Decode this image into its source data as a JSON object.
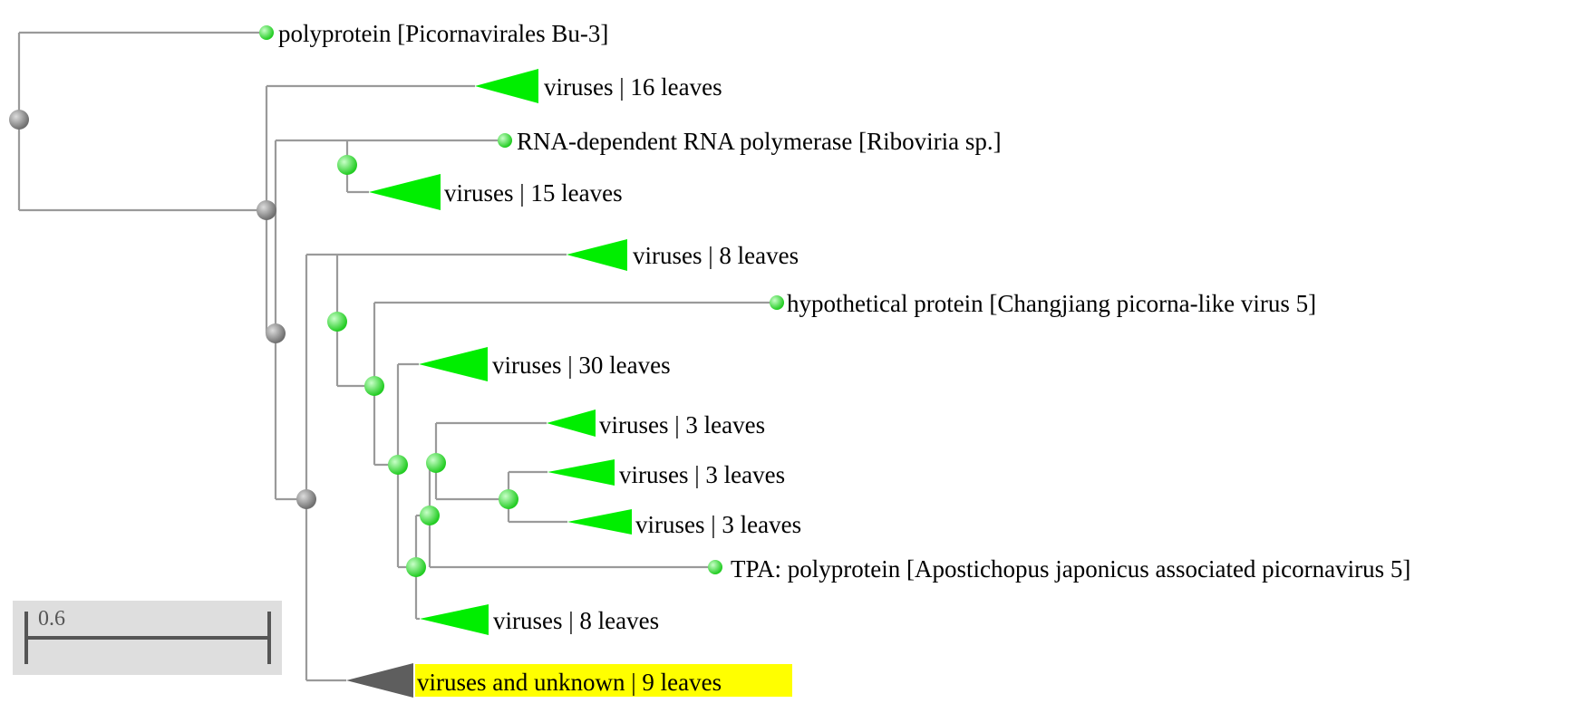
{
  "colors": {
    "branch": "#9a9a9a",
    "internal_node_gray": "#8c8c8c",
    "internal_node_green": "#55ee55",
    "leaf_node": "#44dd44",
    "collapsed_clade_green": "#00ee00",
    "collapsed_clade_gray": "#5e5e5e",
    "highlight": "#ffff00",
    "scale_bg": "#dedede",
    "scale_bar": "#555555"
  },
  "tree": {
    "leaves": [
      {
        "label": "polyprotein [Picornavirales Bu-3]",
        "kind": "leaf"
      },
      {
        "label": "viruses | 16 leaves",
        "kind": "clade"
      },
      {
        "label": "RNA-dependent RNA polymerase [Riboviria sp.]",
        "kind": "leaf"
      },
      {
        "label": "viruses | 15 leaves",
        "kind": "clade"
      },
      {
        "label": "viruses | 8 leaves",
        "kind": "clade"
      },
      {
        "label": "hypothetical protein [Changjiang picorna-like virus 5]",
        "kind": "leaf"
      },
      {
        "label": "viruses | 30 leaves",
        "kind": "clade"
      },
      {
        "label": "viruses | 3 leaves",
        "kind": "clade"
      },
      {
        "label": "viruses | 3 leaves",
        "kind": "clade"
      },
      {
        "label": "viruses | 3 leaves",
        "kind": "clade"
      },
      {
        "label": "TPA: polyprotein [Apostichopus japonicus associated picornavirus 5]",
        "kind": "leaf"
      },
      {
        "label": "viruses | 8 leaves",
        "kind": "clade"
      },
      {
        "label": "viruses and unknown | 9 leaves",
        "kind": "clade",
        "highlighted": true
      }
    ]
  },
  "scale_bar": {
    "label": "0.6"
  }
}
